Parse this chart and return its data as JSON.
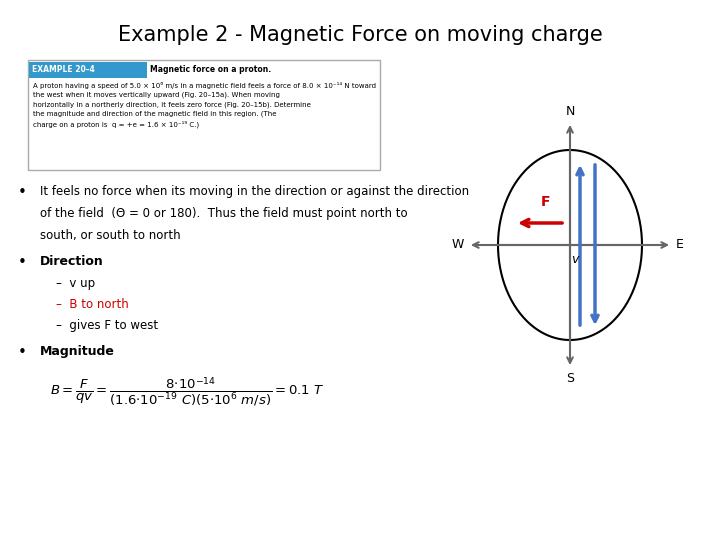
{
  "title": "Example 2 - Magnetic Force on moving charge",
  "title_fontsize": 15,
  "background_color": "#ffffff",
  "text_color": "#000000",
  "bullet1_line1": "It feels no force when its moving in the direction or against the direction",
  "bullet1_line2": "of the field  (Θ = 0 or 180).  Thus the field must point north to",
  "bullet1_line3": "south, or south to north",
  "bullet2": "Direction",
  "sub1": "v up",
  "sub2": "B to north",
  "sub2_color": "#cc0000",
  "sub3": "gives F to west",
  "bullet3": "Magnitude",
  "arrow_color_F": "#cc0000",
  "arrow_color_v": "#4472c4",
  "axis_color": "#666666",
  "textbox_header_color": "#3399cc"
}
